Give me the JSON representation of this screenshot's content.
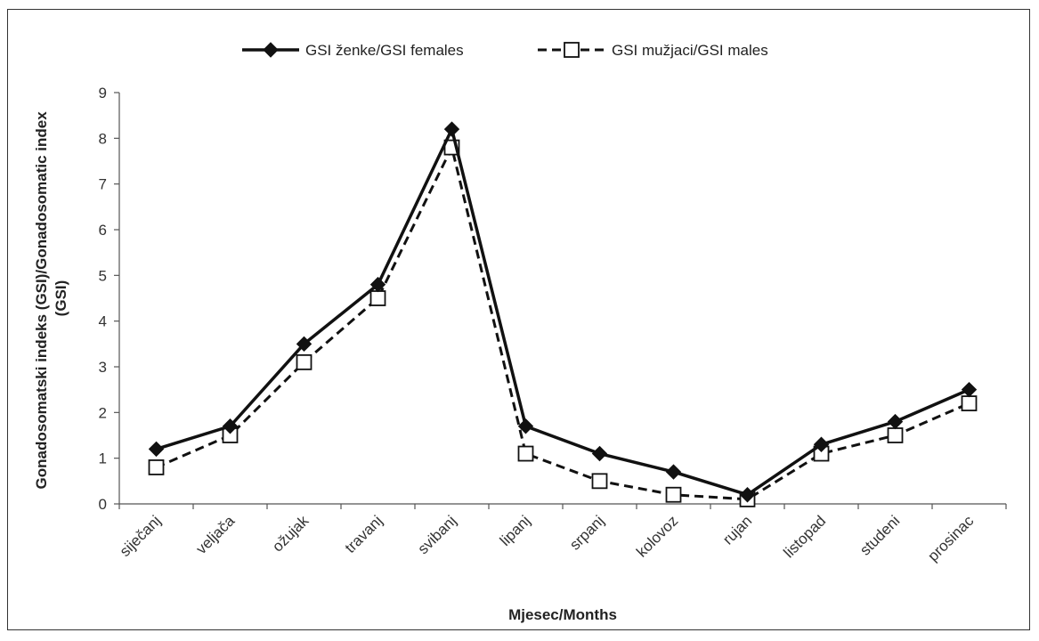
{
  "chart_data": {
    "type": "line",
    "categories": [
      "siječanj",
      "veljača",
      "ožujak",
      "travanj",
      "svibanj",
      "lipanj",
      "srpanj",
      "kolovoz",
      "rujan",
      "listopad",
      "studeni",
      "prosinac"
    ],
    "series": [
      {
        "name": "GSI ženke/GSI females",
        "values": [
          1.2,
          1.7,
          3.5,
          4.8,
          8.2,
          1.7,
          1.1,
          0.7,
          0.2,
          1.3,
          1.8,
          2.5
        ],
        "color": "#111111",
        "marker": "diamond",
        "dash": "solid"
      },
      {
        "name": "GSI mužjaci/GSI males",
        "values": [
          0.8,
          1.5,
          3.1,
          4.5,
          7.8,
          1.1,
          0.5,
          0.2,
          0.1,
          1.1,
          1.5,
          2.2
        ],
        "color": "#111111",
        "marker": "square-open",
        "dash": "dashed"
      }
    ],
    "xlabel": "Mjesec/Months",
    "ylabel": [
      "Gonadosomatski indeks (GSI)/Gonadosomatic index",
      "(GSI)"
    ],
    "ylim": [
      0,
      9
    ],
    "yticks": [
      0,
      1,
      2,
      3,
      4,
      5,
      6,
      7,
      8,
      9
    ],
    "grid": false,
    "legend": "top"
  }
}
